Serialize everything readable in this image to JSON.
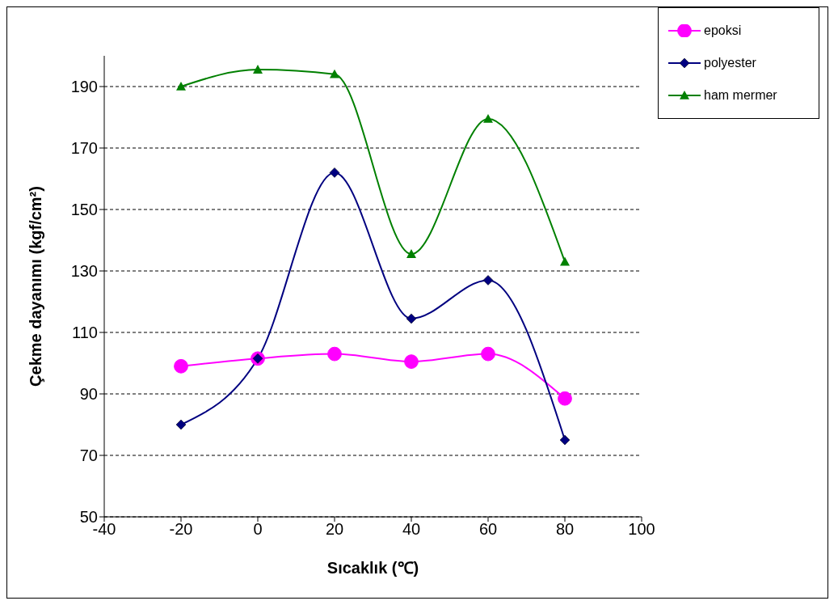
{
  "chart_data": {
    "type": "line",
    "xlabel": "Sıcaklık (℃)",
    "ylabel": "Çekme dayanımı  (kgf/cm²)",
    "x": [
      -20,
      0,
      20,
      40,
      60,
      80
    ],
    "series": [
      {
        "name": "epoksi",
        "color": "#ff00ff",
        "marker": "circle",
        "values": [
          99,
          101.5,
          103,
          100.5,
          103,
          88.5
        ]
      },
      {
        "name": "polyester",
        "color": "#000080",
        "marker": "diamond",
        "values": [
          80,
          101.5,
          162,
          114.5,
          127,
          75
        ]
      },
      {
        "name": "ham mermer",
        "color": "#008000",
        "marker": "triangle",
        "values": [
          190,
          195.5,
          194,
          135.5,
          179.5,
          133
        ]
      }
    ],
    "xlim": [
      -40,
      100
    ],
    "xticks": [
      -40,
      -20,
      0,
      20,
      40,
      60,
      80,
      100
    ],
    "ylim": [
      50,
      200
    ],
    "yticks": [
      50,
      70,
      90,
      110,
      130,
      150,
      170,
      190
    ],
    "grid": "y",
    "legend": "top right",
    "line_style": "solid"
  }
}
